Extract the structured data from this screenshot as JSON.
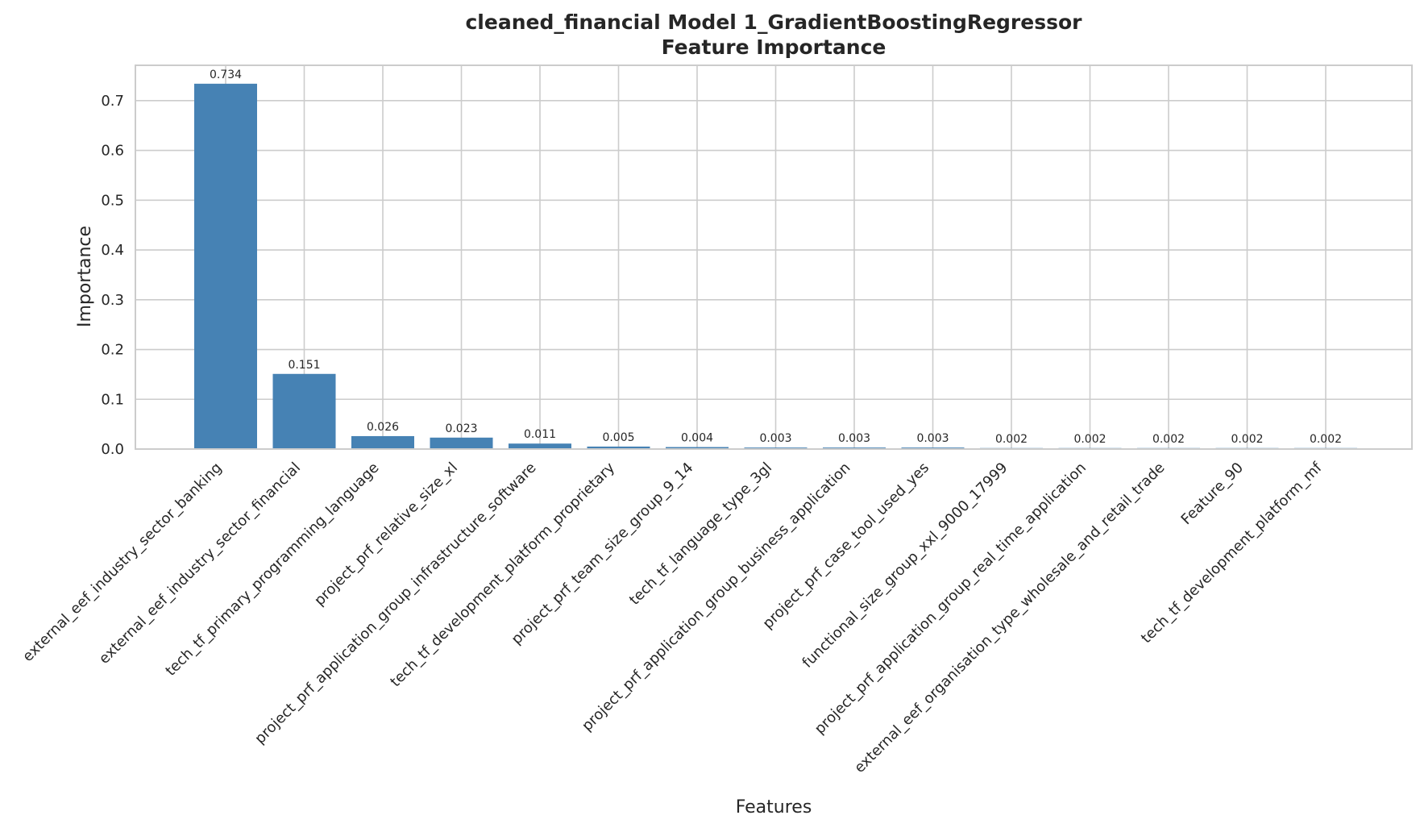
{
  "chart_data": {
    "type": "bar",
    "title_line1": "cleaned_financial Model 1_GradientBoostingRegressor",
    "title_line2": "Feature Importance",
    "xlabel": "Features",
    "ylabel": "Importance",
    "ylim": [
      0,
      0.771
    ],
    "yticks": [
      0.0,
      0.1,
      0.2,
      0.3,
      0.4,
      0.5,
      0.6,
      0.7
    ],
    "grid": true,
    "bar_color": "#4682B4",
    "categories": [
      "external_eef_industry_sector_banking",
      "external_eef_industry_sector_financial",
      "tech_tf_primary_programming_language",
      "project_prf_relative_size_xl",
      "project_prf_application_group_infrastructure_software",
      "tech_tf_development_platform_proprietary",
      "project_prf_team_size_group_9_14",
      "tech_tf_language_type_3gl",
      "project_prf_application_group_business_application",
      "project_prf_case_tool_used_yes",
      "functional_size_group_xxl_9000_17999",
      "project_prf_application_group_real_time_application",
      "external_eef_organisation_type_wholesale_and_retail_trade",
      "Feature_90",
      "tech_tf_development_platform_mf"
    ],
    "values": [
      0.734,
      0.151,
      0.026,
      0.023,
      0.011,
      0.005,
      0.004,
      0.003,
      0.003,
      0.003,
      0.002,
      0.002,
      0.002,
      0.002,
      0.002
    ],
    "data_labels": [
      "0.734",
      "0.151",
      "0.026",
      "0.023",
      "0.011",
      "0.005",
      "0.004",
      "0.003",
      "0.003",
      "0.003",
      "0.002",
      "0.002",
      "0.002",
      "0.002",
      "0.002"
    ]
  }
}
